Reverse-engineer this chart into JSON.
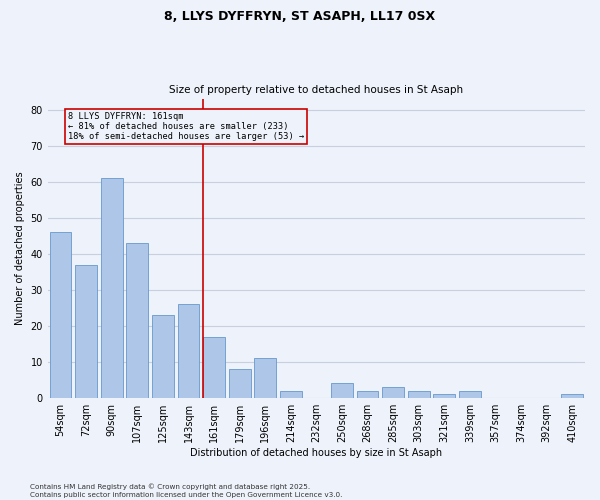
{
  "title1": "8, LLYS DYFFRYN, ST ASAPH, LL17 0SX",
  "title2": "Size of property relative to detached houses in St Asaph",
  "xlabel": "Distribution of detached houses by size in St Asaph",
  "ylabel": "Number of detached properties",
  "bar_labels": [
    "54sqm",
    "72sqm",
    "90sqm",
    "107sqm",
    "125sqm",
    "143sqm",
    "161sqm",
    "179sqm",
    "196sqm",
    "214sqm",
    "232sqm",
    "250sqm",
    "268sqm",
    "285sqm",
    "303sqm",
    "321sqm",
    "339sqm",
    "357sqm",
    "374sqm",
    "392sqm",
    "410sqm"
  ],
  "bar_values": [
    46,
    37,
    61,
    43,
    23,
    26,
    17,
    8,
    11,
    2,
    0,
    4,
    2,
    3,
    2,
    1,
    2,
    0,
    0,
    0,
    1
  ],
  "bar_color": "#aec6e8",
  "bar_edge_color": "#6699cc",
  "vline_index": 6,
  "vline_color": "#cc0000",
  "annotation_text": "8 LLYS DYFFRYN: 161sqm\n← 81% of detached houses are smaller (233)\n18% of semi-detached houses are larger (53) →",
  "annotation_box_color": "#cc0000",
  "ylim": [
    0,
    83
  ],
  "yticks": [
    0,
    10,
    20,
    30,
    40,
    50,
    60,
    70,
    80
  ],
  "grid_color": "#c8cfe0",
  "background_color": "#eef2fa",
  "footer": "Contains HM Land Registry data © Crown copyright and database right 2025.\nContains public sector information licensed under the Open Government Licence v3.0."
}
